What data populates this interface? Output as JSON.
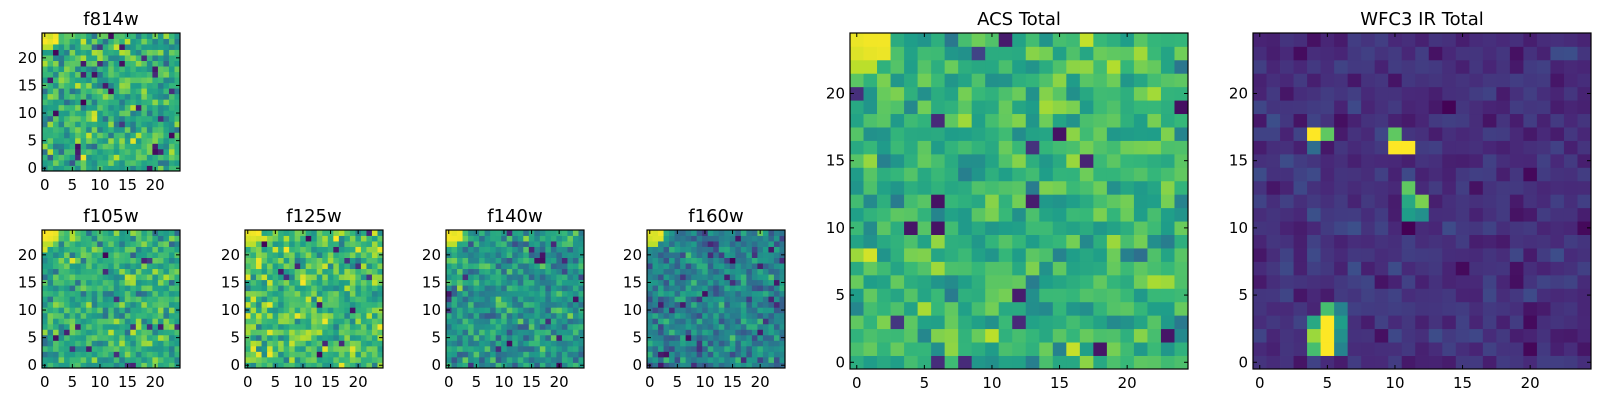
{
  "chart_data": [
    {
      "id": "f814w",
      "type": "heatmap",
      "title": "f814w",
      "grid_size": 25,
      "xlim": [
        -0.5,
        24.5
      ],
      "ylim": [
        -0.5,
        24.5
      ],
      "xticks": [
        0,
        5,
        10,
        15,
        20
      ],
      "yticks": [
        0,
        5,
        10,
        15,
        20
      ],
      "xtick_labels": [
        "0",
        "5",
        "10",
        "15",
        "20"
      ],
      "ytick_labels": [
        "0",
        "5",
        "10",
        "15",
        "20"
      ],
      "colormap": "viridis",
      "seed": 11,
      "base": 0.62,
      "spread": 0.16,
      "dark_fraction": 0.035,
      "bright_corner": true,
      "spots": []
    },
    {
      "id": "f105w",
      "type": "heatmap",
      "title": "f105w",
      "grid_size": 25,
      "xlim": [
        -0.5,
        24.5
      ],
      "ylim": [
        -0.5,
        24.5
      ],
      "xticks": [
        0,
        5,
        10,
        15,
        20
      ],
      "yticks": [
        0,
        5,
        10,
        15,
        20
      ],
      "xtick_labels": [
        "0",
        "5",
        "10",
        "15",
        "20"
      ],
      "ytick_labels": [
        "0",
        "5",
        "10",
        "15",
        "20"
      ],
      "colormap": "viridis",
      "seed": 23,
      "base": 0.63,
      "spread": 0.15,
      "dark_fraction": 0.03,
      "bright_corner": true,
      "spots": []
    },
    {
      "id": "f125w",
      "type": "heatmap",
      "title": "f125w",
      "grid_size": 25,
      "xlim": [
        -0.5,
        24.5
      ],
      "ylim": [
        -0.5,
        24.5
      ],
      "xticks": [
        0,
        5,
        10,
        15,
        20
      ],
      "yticks": [
        0,
        5,
        10,
        15,
        20
      ],
      "xtick_labels": [
        "0",
        "5",
        "10",
        "15",
        "20"
      ],
      "ytick_labels": [
        "0",
        "5",
        "10",
        "15",
        "20"
      ],
      "colormap": "viridis",
      "seed": 37,
      "base": 0.7,
      "spread": 0.16,
      "dark_fraction": 0.03,
      "bright_corner": true,
      "spots": []
    },
    {
      "id": "f140w",
      "type": "heatmap",
      "title": "f140w",
      "grid_size": 25,
      "xlim": [
        -0.5,
        24.5
      ],
      "ylim": [
        -0.5,
        24.5
      ],
      "xticks": [
        0,
        5,
        10,
        15,
        20
      ],
      "yticks": [
        0,
        5,
        10,
        15,
        20
      ],
      "xtick_labels": [
        "0",
        "5",
        "10",
        "15",
        "20"
      ],
      "ytick_labels": [
        "0",
        "5",
        "10",
        "15",
        "20"
      ],
      "colormap": "viridis",
      "seed": 41,
      "base": 0.52,
      "spread": 0.14,
      "dark_fraction": 0.025,
      "bright_corner": true,
      "spots": []
    },
    {
      "id": "f160w",
      "type": "heatmap",
      "title": "f160w",
      "grid_size": 25,
      "xlim": [
        -0.5,
        24.5
      ],
      "ylim": [
        -0.5,
        24.5
      ],
      "xticks": [
        0,
        5,
        10,
        15,
        20
      ],
      "yticks": [
        0,
        5,
        10,
        15,
        20
      ],
      "xtick_labels": [
        "0",
        "5",
        "10",
        "15",
        "20"
      ],
      "ytick_labels": [
        "0",
        "5",
        "10",
        "15",
        "20"
      ],
      "colormap": "viridis",
      "seed": 53,
      "base": 0.45,
      "spread": 0.14,
      "dark_fraction": 0.035,
      "bright_corner": true,
      "spots": []
    },
    {
      "id": "acs-total",
      "type": "heatmap",
      "title": "ACS Total",
      "grid_size": 25,
      "xlim": [
        -0.5,
        24.5
      ],
      "ylim": [
        -0.5,
        24.5
      ],
      "xticks": [
        0,
        5,
        10,
        15,
        20
      ],
      "yticks": [
        0,
        5,
        10,
        15,
        20
      ],
      "xtick_labels": [
        "0",
        "5",
        "10",
        "15",
        "20"
      ],
      "ytick_labels": [
        "0",
        "5",
        "10",
        "15",
        "20"
      ],
      "colormap": "viridis",
      "seed": 67,
      "base": 0.66,
      "spread": 0.13,
      "dark_fraction": 0.015,
      "bright_corner": true,
      "spots": [
        [
          6,
          12,
          0.05
        ],
        [
          4,
          10,
          0.06
        ],
        [
          6,
          10,
          0.05
        ],
        [
          9,
          23,
          0.2
        ],
        [
          12,
          5,
          0.08
        ],
        [
          18,
          1,
          0.06
        ],
        [
          23,
          2,
          0.06
        ],
        [
          24,
          19,
          0.04
        ],
        [
          17,
          15,
          0.1
        ],
        [
          8,
          0,
          0.12
        ]
      ]
    },
    {
      "id": "wfc3-ir-total",
      "type": "heatmap",
      "title": "WFC3 IR Total",
      "grid_size": 25,
      "xlim": [
        -0.5,
        24.5
      ],
      "ylim": [
        -0.5,
        24.5
      ],
      "xticks": [
        0,
        5,
        10,
        15,
        20
      ],
      "yticks": [
        0,
        5,
        10,
        15,
        20
      ],
      "xtick_labels": [
        "0",
        "5",
        "10",
        "15",
        "20"
      ],
      "ytick_labels": [
        "0",
        "5",
        "10",
        "15",
        "20"
      ],
      "colormap": "viridis",
      "seed": 79,
      "base": 0.14,
      "spread": 0.05,
      "dark_fraction": 0.06,
      "bright_corner": false,
      "spots": [
        [
          4,
          17,
          1.0
        ],
        [
          5,
          17,
          0.75
        ],
        [
          4,
          16,
          0.35
        ],
        [
          10,
          16,
          1.0
        ],
        [
          11,
          16,
          1.0
        ],
        [
          10,
          17,
          0.75
        ],
        [
          11,
          13,
          0.75
        ],
        [
          12,
          12,
          0.8
        ],
        [
          11,
          12,
          0.6
        ],
        [
          11,
          11,
          0.55
        ],
        [
          12,
          11,
          0.5
        ],
        [
          5,
          3,
          1.0
        ],
        [
          5,
          2,
          1.0
        ],
        [
          5,
          1,
          1.0
        ],
        [
          4,
          2,
          0.85
        ],
        [
          4,
          1,
          0.7
        ],
        [
          5,
          4,
          0.7
        ],
        [
          6,
          3,
          0.55
        ],
        [
          6,
          2,
          0.5
        ],
        [
          4,
          3,
          0.6
        ],
        [
          6,
          1,
          0.45
        ],
        [
          6,
          4,
          0.45
        ]
      ]
    }
  ]
}
